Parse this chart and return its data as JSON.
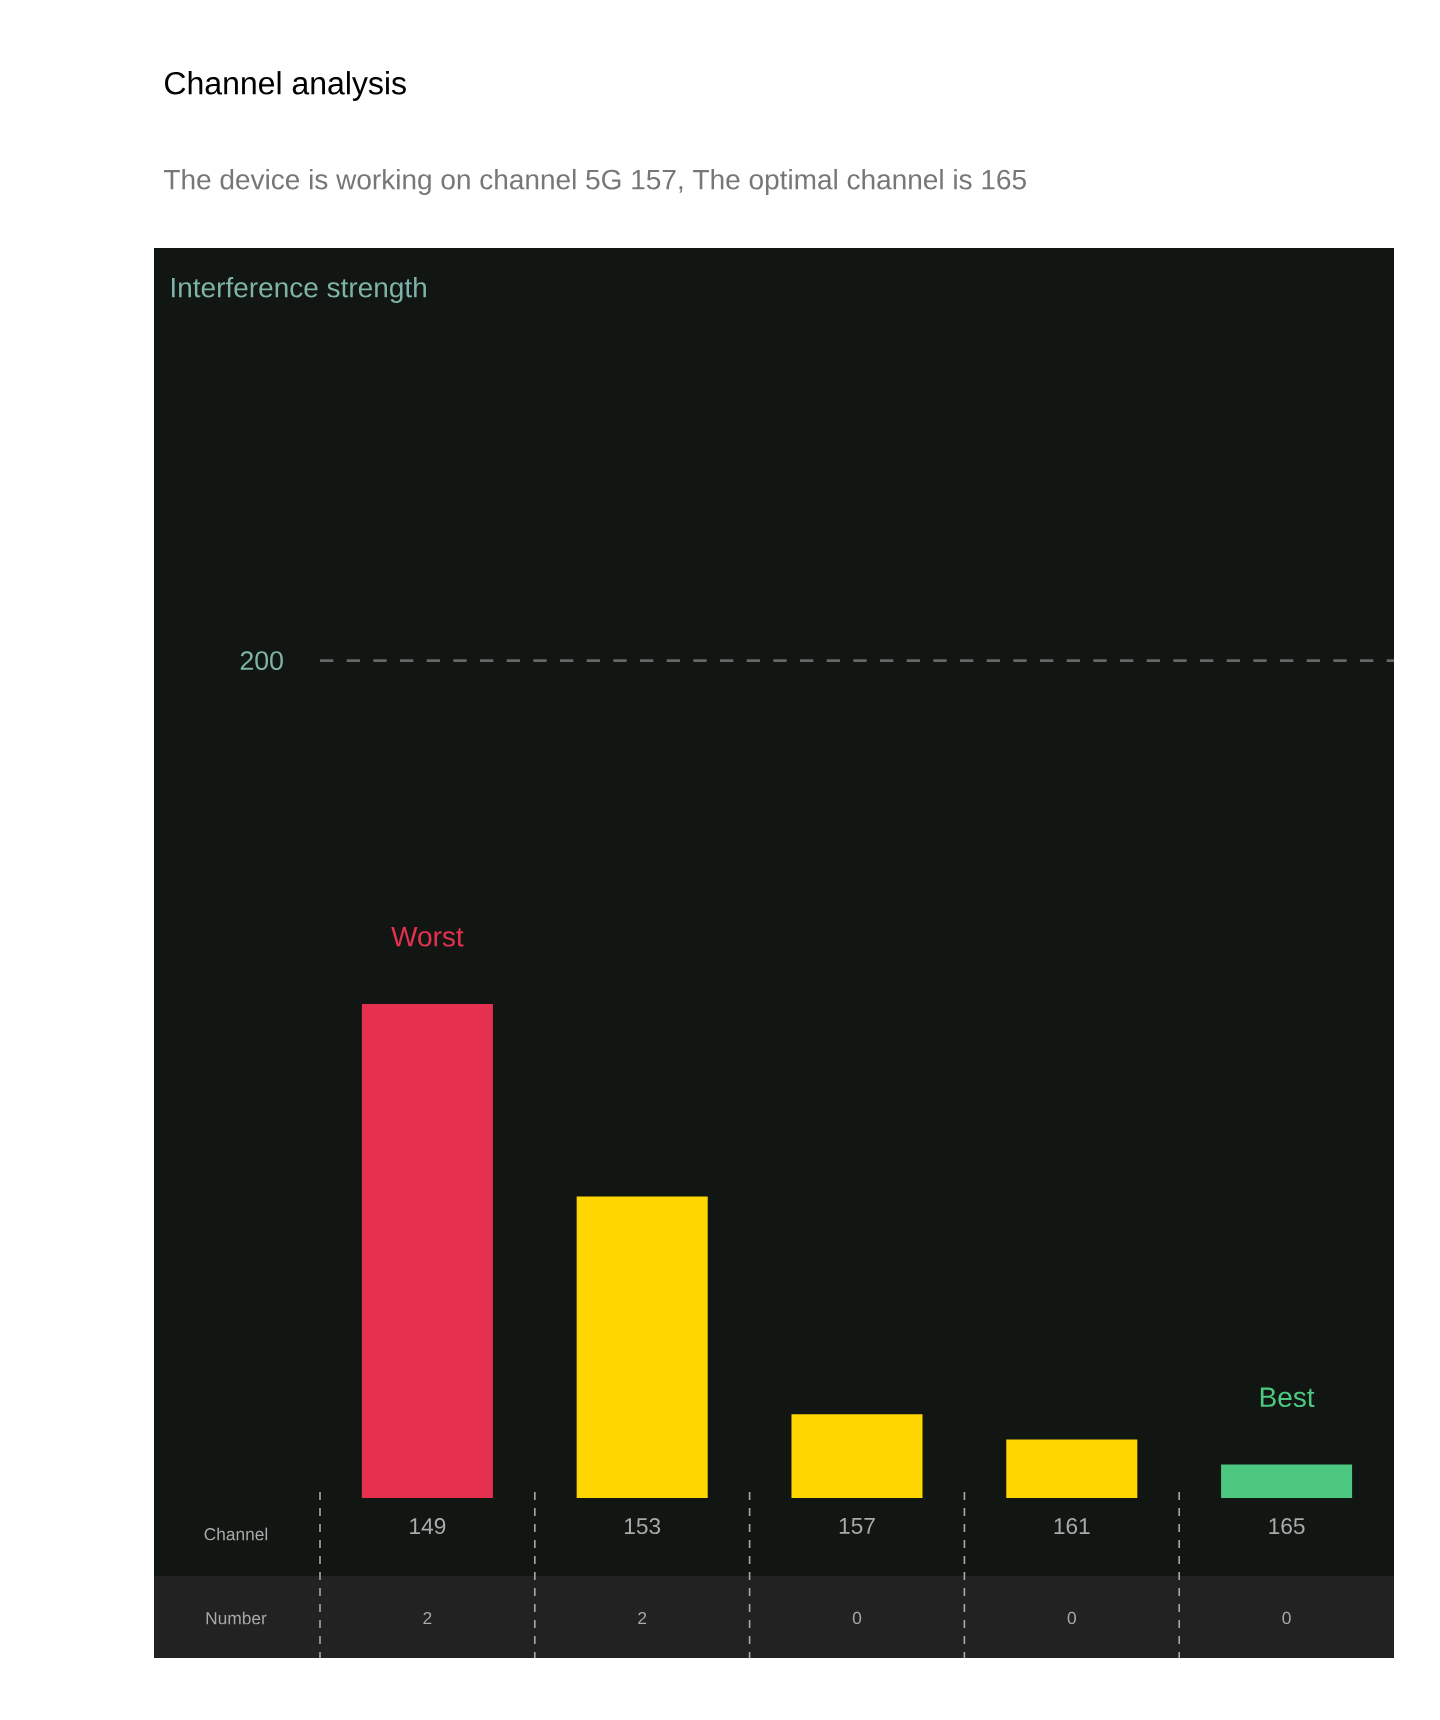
{
  "chart_data": {
    "type": "bar",
    "title": "Channel analysis",
    "subtitle": "The device is working on channel 5G 157, The optimal channel is 165",
    "xlabel": "Channel",
    "categories": [
      "149",
      "153",
      "157",
      "161",
      "165"
    ],
    "values": [
      118,
      72,
      20,
      14,
      8
    ],
    "colors": [
      "#e63050",
      "#ffd600",
      "#ffd600",
      "#ffd600",
      "#4cc880"
    ],
    "ylim": [
      0,
      300
    ],
    "yticks": [
      200
    ],
    "grid": "y",
    "annotations": [
      "Interference strength",
      {
        "text": "Worst",
        "x": "149",
        "y": 118
      },
      {
        "text": "Best",
        "x": "165",
        "y": 8
      },
      "Number",
      "2",
      "2",
      "0",
      "0",
      "0"
    ]
  }
}
